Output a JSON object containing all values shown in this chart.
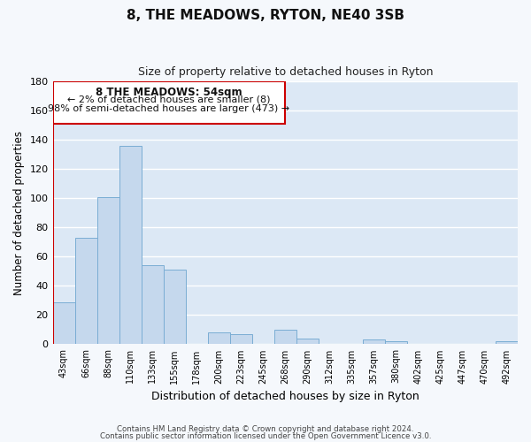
{
  "title": "8, THE MEADOWS, RYTON, NE40 3SB",
  "subtitle": "Size of property relative to detached houses in Ryton",
  "xlabel": "Distribution of detached houses by size in Ryton",
  "ylabel": "Number of detached properties",
  "bar_color": "#c5d8ed",
  "bar_edge_color": "#7aadd4",
  "background_color": "#dce8f5",
  "fig_background": "#f5f8fc",
  "grid_color": "#ffffff",
  "ylim": [
    0,
    180
  ],
  "yticks": [
    0,
    20,
    40,
    60,
    80,
    100,
    120,
    140,
    160,
    180
  ],
  "bin_labels": [
    "43sqm",
    "66sqm",
    "88sqm",
    "110sqm",
    "133sqm",
    "155sqm",
    "178sqm",
    "200sqm",
    "223sqm",
    "245sqm",
    "268sqm",
    "290sqm",
    "312sqm",
    "335sqm",
    "357sqm",
    "380sqm",
    "402sqm",
    "425sqm",
    "447sqm",
    "470sqm",
    "492sqm"
  ],
  "bar_heights": [
    29,
    73,
    101,
    136,
    54,
    51,
    0,
    8,
    7,
    0,
    10,
    4,
    0,
    0,
    3,
    2,
    0,
    0,
    0,
    0,
    2
  ],
  "annotation_line1": "8 THE MEADOWS: 54sqm",
  "annotation_line2": "← 2% of detached houses are smaller (8)",
  "annotation_line3": "98% of semi-detached houses are larger (473) →",
  "annotation_box_color": "#ffffff",
  "annotation_box_edge_color": "#cc0000",
  "red_line_color": "#cc0000",
  "footer1": "Contains HM Land Registry data © Crown copyright and database right 2024.",
  "footer2": "Contains public sector information licensed under the Open Government Licence v3.0."
}
